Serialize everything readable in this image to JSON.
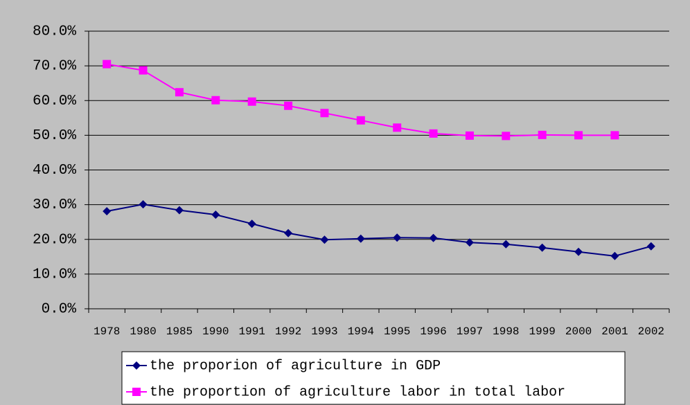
{
  "chart_data": {
    "type": "line",
    "categories": [
      "1978",
      "1980",
      "1985",
      "1990",
      "1991",
      "1992",
      "1993",
      "1994",
      "1995",
      "1996",
      "1997",
      "1998",
      "1999",
      "2000",
      "2001",
      "2002"
    ],
    "series": [
      {
        "name": "the proporion of agriculture in GDP",
        "color": "#000080",
        "marker": "diamond",
        "values": [
          28.1,
          30.1,
          28.4,
          27.1,
          24.5,
          21.8,
          19.9,
          20.2,
          20.5,
          20.4,
          19.1,
          18.6,
          17.6,
          16.4,
          15.2,
          18.0
        ]
      },
      {
        "name": "the proportion of agriculture labor in total labor",
        "color": "#ff00ff",
        "marker": "square",
        "values": [
          70.5,
          68.7,
          62.4,
          60.1,
          59.7,
          58.5,
          56.4,
          54.3,
          52.2,
          50.5,
          49.9,
          49.8,
          50.1,
          50.0,
          50.0,
          null
        ]
      }
    ],
    "ylim": [
      0,
      80
    ],
    "yticks": [
      {
        "value": 0,
        "label": "0.0%"
      },
      {
        "value": 10,
        "label": "10.0%"
      },
      {
        "value": 20,
        "label": "20.0%"
      },
      {
        "value": 30,
        "label": "30.0%"
      },
      {
        "value": 40,
        "label": "40.0%"
      },
      {
        "value": 50,
        "label": "50.0%"
      },
      {
        "value": 60,
        "label": "60.0%"
      },
      {
        "value": 70,
        "label": "70.0%"
      },
      {
        "value": 80,
        "label": "80.0%"
      }
    ],
    "grid": true,
    "legend": "bottom"
  }
}
